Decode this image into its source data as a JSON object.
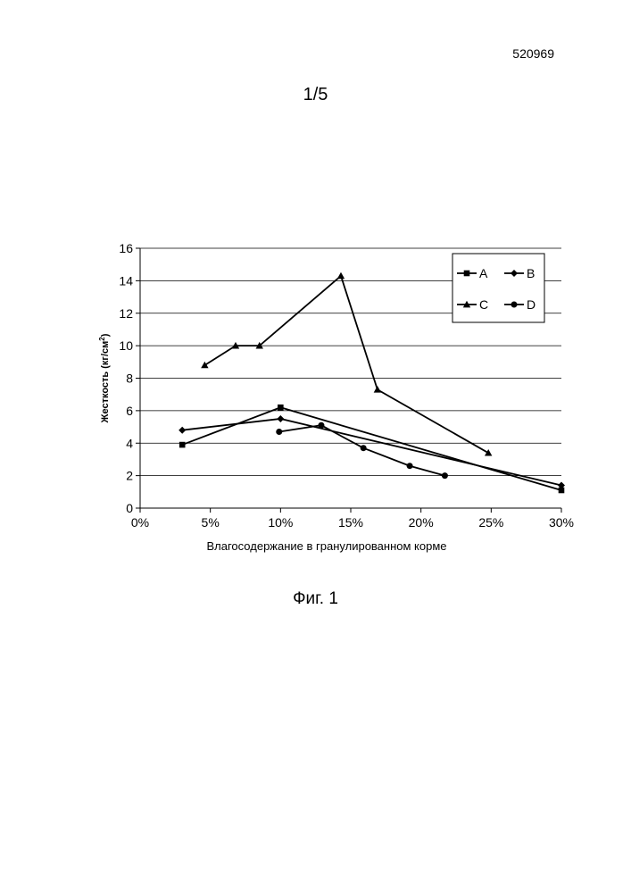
{
  "document": {
    "number": "520969",
    "page": "1/5",
    "caption": "Фиг. 1"
  },
  "chart_data": {
    "type": "line",
    "xlabel": "Влагосодержание в гранулированном корме",
    "ylabel_main": "Жесткость (кг/см",
    "ylabel_sup": "2",
    "ylabel_close": ")",
    "xlim": [
      0,
      30
    ],
    "ylim": [
      0,
      16
    ],
    "x_ticks": [
      0,
      5,
      10,
      15,
      20,
      25,
      30
    ],
    "x_tick_labels": [
      "0%",
      "5%",
      "10%",
      "15%",
      "20%",
      "25%",
      "30%"
    ],
    "y_ticks": [
      0,
      2,
      4,
      6,
      8,
      10,
      12,
      14,
      16
    ],
    "y_tick_labels": [
      "0",
      "2",
      "4",
      "6",
      "8",
      "10",
      "12",
      "14",
      "16"
    ],
    "grid": "horizontal",
    "legend_position": "top-right",
    "series": [
      {
        "name": "A",
        "marker": "square",
        "x": [
          3,
          10,
          30
        ],
        "y": [
          3.9,
          6.2,
          1.1
        ]
      },
      {
        "name": "B",
        "marker": "diamond",
        "x": [
          3,
          10,
          30
        ],
        "y": [
          4.8,
          5.5,
          1.4
        ]
      },
      {
        "name": "C",
        "marker": "triangle",
        "x": [
          4.6,
          6.8,
          8.5,
          14.3,
          16.9,
          24.8
        ],
        "y": [
          8.8,
          10.0,
          10.0,
          14.3,
          7.3,
          3.4
        ]
      },
      {
        "name": "D",
        "marker": "circle",
        "x": [
          9.9,
          12.9,
          15.9,
          19.2,
          21.7
        ],
        "y": [
          4.7,
          5.1,
          3.7,
          2.6,
          2.0
        ]
      }
    ]
  }
}
